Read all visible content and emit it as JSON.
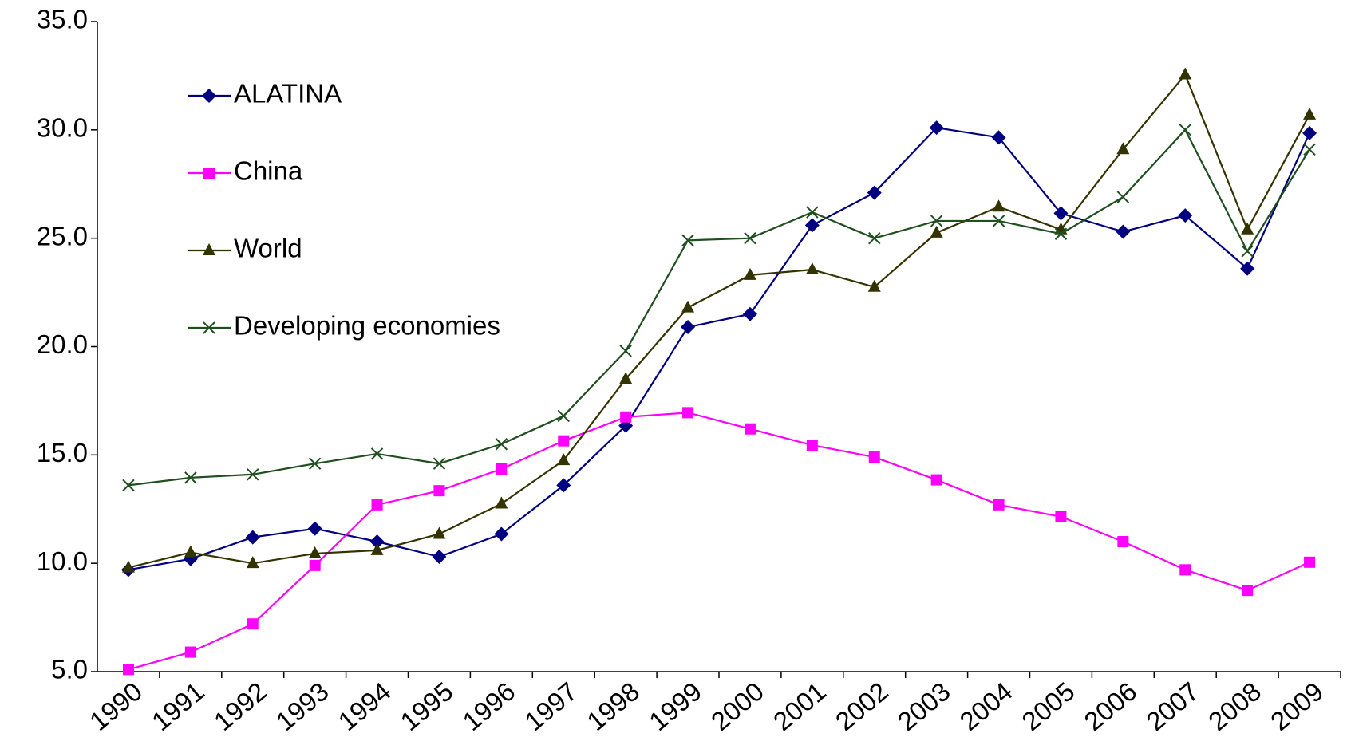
{
  "chart_data": {
    "type": "line",
    "categories": [
      "1990",
      "1991",
      "1992",
      "1993",
      "1994",
      "1995",
      "1996",
      "1997",
      "1998",
      "1999",
      "2000",
      "2001",
      "2002",
      "2003",
      "2004",
      "2005",
      "2006",
      "2007",
      "2008",
      "2009"
    ],
    "ylim": [
      5,
      35
    ],
    "yticks": [
      {
        "value": 5,
        "label": "5.0"
      },
      {
        "value": 10,
        "label": "10.0"
      },
      {
        "value": 15,
        "label": "15.0"
      },
      {
        "value": 20,
        "label": "20.0"
      },
      {
        "value": 25,
        "label": "25.0"
      },
      {
        "value": 30,
        "label": "30.0"
      },
      {
        "value": 35,
        "label": "35.0"
      }
    ],
    "grid": false,
    "legend": "upper left",
    "series": [
      {
        "name": "ALATINA",
        "color": "#000080",
        "marker": "diamond",
        "values": [
          9.7,
          10.2,
          11.2,
          11.6,
          11.0,
          10.3,
          11.35,
          13.6,
          16.35,
          20.9,
          21.5,
          25.6,
          27.1,
          30.1,
          29.65,
          26.15,
          25.3,
          26.05,
          23.6,
          29.85
        ]
      },
      {
        "name": "China",
        "color": "#ff00ff",
        "marker": "square",
        "values": [
          5.1,
          5.9,
          7.2,
          9.9,
          12.7,
          13.35,
          14.35,
          15.65,
          16.75,
          16.95,
          16.2,
          15.45,
          14.9,
          13.85,
          12.7,
          12.15,
          11.0,
          9.7,
          8.75,
          10.05
        ]
      },
      {
        "name": "World",
        "color": "#333300",
        "marker": "triangle",
        "values": [
          9.8,
          10.5,
          10.0,
          10.45,
          10.6,
          11.35,
          12.75,
          14.75,
          18.5,
          21.8,
          23.3,
          23.55,
          22.75,
          25.25,
          26.45,
          25.4,
          29.1,
          32.55,
          25.4,
          30.7
        ]
      },
      {
        "name": "Developing economies",
        "color": "#1f4f1f",
        "marker": "x",
        "values": [
          13.6,
          13.95,
          14.1,
          14.6,
          15.05,
          14.6,
          15.5,
          16.8,
          19.8,
          24.9,
          25.0,
          26.2,
          25.0,
          25.8,
          25.8,
          25.2,
          26.9,
          30.0,
          24.4,
          29.1
        ]
      }
    ]
  }
}
